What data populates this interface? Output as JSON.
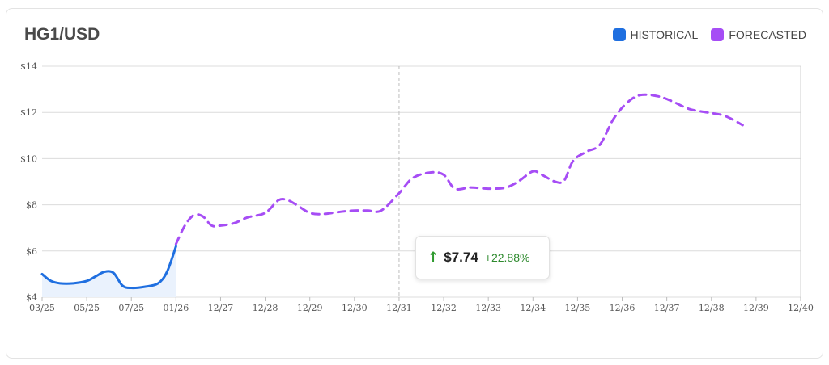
{
  "header": {
    "title": "HG1/USD"
  },
  "legend": [
    {
      "label": "HISTORICAL",
      "color": "#1f6fe0"
    },
    {
      "label": "FORECASTED",
      "color": "#a64df5"
    }
  ],
  "tooltip": {
    "arrow_icon": "arrow-up-icon",
    "arrow_glyph": "↑",
    "value": "$7.74",
    "change": "+22.88%"
  },
  "chart_data": {
    "type": "line",
    "title": "HG1/USD",
    "xlabel": "",
    "ylabel": "",
    "ylim": [
      4,
      14
    ],
    "yticks": [
      4,
      6,
      8,
      10,
      12,
      14
    ],
    "ytick_labels": [
      "$4",
      "$6",
      "$8",
      "$10",
      "$12",
      "$14"
    ],
    "x_tick_labels": [
      "03/25",
      "05/25",
      "07/25",
      "01/26",
      "12/27",
      "12/28",
      "12/29",
      "12/30",
      "12/31",
      "12/32",
      "12/33",
      "12/34",
      "12/35",
      "12/36",
      "12/37",
      "12/38",
      "12/39",
      "12/40"
    ],
    "grid": true,
    "legend_position": "top-right",
    "hover_x": "12/31",
    "series": [
      {
        "name": "HISTORICAL",
        "style": "solid",
        "color": "#1f6fe0",
        "points": [
          [
            0,
            5.0
          ],
          [
            0.2,
            4.7
          ],
          [
            0.4,
            4.6
          ],
          [
            0.7,
            4.6
          ],
          [
            1.0,
            4.7
          ],
          [
            1.2,
            4.9
          ],
          [
            1.4,
            5.1
          ],
          [
            1.6,
            5.05
          ],
          [
            1.8,
            4.5
          ],
          [
            2.0,
            4.4
          ],
          [
            2.3,
            4.45
          ],
          [
            2.6,
            4.6
          ],
          [
            2.8,
            5.1
          ],
          [
            3.0,
            6.2
          ]
        ]
      },
      {
        "name": "FORECASTED",
        "style": "dashed",
        "color": "#a64df5",
        "points": [
          [
            3.0,
            6.3
          ],
          [
            3.2,
            7.1
          ],
          [
            3.4,
            7.55
          ],
          [
            3.6,
            7.5
          ],
          [
            3.8,
            7.1
          ],
          [
            4.0,
            7.1
          ],
          [
            4.3,
            7.2
          ],
          [
            4.6,
            7.45
          ],
          [
            5.0,
            7.65
          ],
          [
            5.3,
            8.2
          ],
          [
            5.5,
            8.2
          ],
          [
            5.7,
            8.0
          ],
          [
            6.0,
            7.65
          ],
          [
            6.3,
            7.6
          ],
          [
            6.7,
            7.7
          ],
          [
            7.0,
            7.75
          ],
          [
            7.3,
            7.75
          ],
          [
            7.6,
            7.75
          ],
          [
            8.0,
            8.5
          ],
          [
            8.3,
            9.15
          ],
          [
            8.7,
            9.4
          ],
          [
            9.0,
            9.3
          ],
          [
            9.25,
            8.7
          ],
          [
            9.6,
            8.75
          ],
          [
            10.0,
            8.7
          ],
          [
            10.4,
            8.75
          ],
          [
            10.7,
            9.05
          ],
          [
            11.0,
            9.45
          ],
          [
            11.2,
            9.3
          ],
          [
            11.5,
            9.0
          ],
          [
            11.7,
            9.05
          ],
          [
            11.9,
            9.9
          ],
          [
            12.2,
            10.3
          ],
          [
            12.5,
            10.6
          ],
          [
            12.8,
            11.7
          ],
          [
            13.1,
            12.4
          ],
          [
            13.4,
            12.75
          ],
          [
            13.8,
            12.7
          ],
          [
            14.1,
            12.5
          ],
          [
            14.5,
            12.15
          ],
          [
            14.9,
            12.0
          ],
          [
            15.3,
            11.85
          ],
          [
            15.7,
            11.45
          ]
        ]
      }
    ]
  }
}
